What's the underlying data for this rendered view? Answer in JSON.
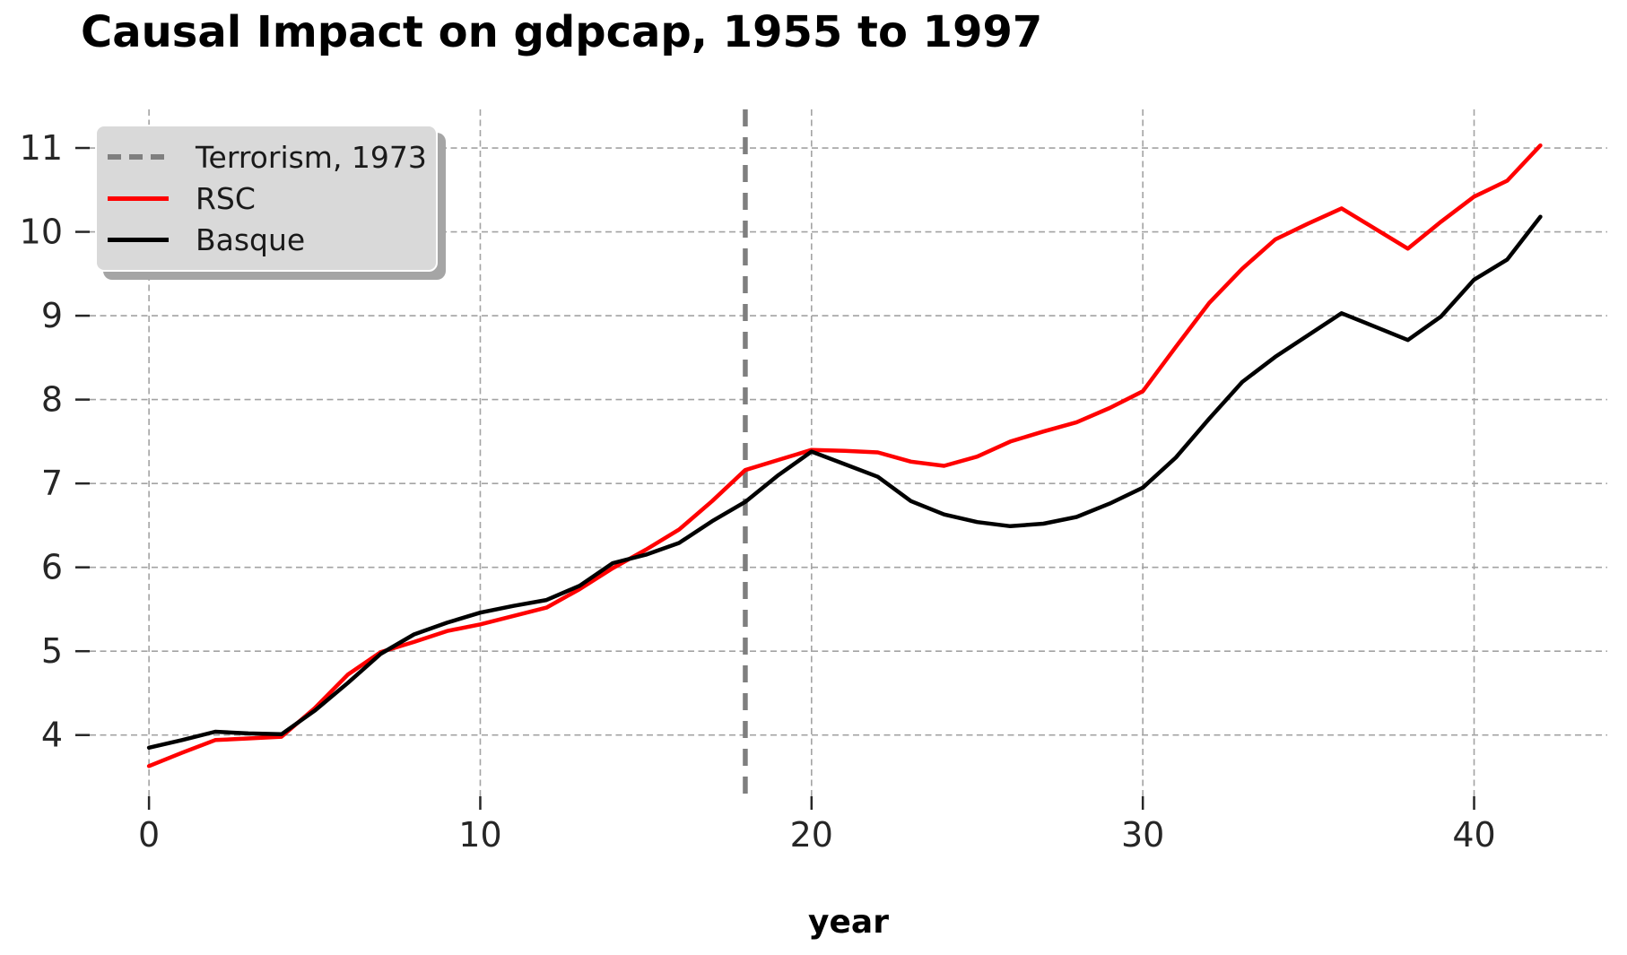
{
  "chart": {
    "title": "Causal Impact on gdpcap, 1955 to 1997",
    "xlabel": "year"
  },
  "chart_data": {
    "type": "line",
    "title": "Causal Impact on gdpcap, 1955 to 1997",
    "xlabel": "year",
    "ylabel": "",
    "x": [
      0,
      1,
      2,
      3,
      4,
      5,
      6,
      7,
      8,
      9,
      10,
      11,
      12,
      13,
      14,
      15,
      16,
      17,
      18,
      19,
      20,
      21,
      22,
      23,
      24,
      25,
      26,
      27,
      28,
      29,
      30,
      31,
      32,
      33,
      34,
      35,
      36,
      37,
      38,
      39,
      40,
      41,
      42
    ],
    "series": [
      {
        "name": "RSC",
        "color": "#ff0000",
        "values": [
          3.63,
          3.79,
          3.94,
          3.96,
          3.98,
          4.32,
          4.72,
          4.99,
          5.11,
          5.24,
          5.32,
          5.42,
          5.52,
          5.74,
          5.99,
          6.21,
          6.45,
          6.79,
          7.16,
          7.28,
          7.4,
          7.39,
          7.37,
          7.26,
          7.21,
          7.32,
          7.5,
          7.62,
          7.73,
          7.9,
          8.1,
          8.63,
          9.15,
          9.56,
          9.91,
          10.1,
          10.28,
          10.04,
          9.8,
          10.12,
          10.42,
          10.61,
          11.03
        ]
      },
      {
        "name": "Basque",
        "color": "#000000",
        "values": [
          3.85,
          3.94,
          4.04,
          4.02,
          4.01,
          4.29,
          4.62,
          4.97,
          5.2,
          5.34,
          5.46,
          5.54,
          5.61,
          5.78,
          6.05,
          6.15,
          6.29,
          6.55,
          6.78,
          7.1,
          7.38,
          7.23,
          7.08,
          6.79,
          6.63,
          6.54,
          6.49,
          6.52,
          6.6,
          6.76,
          6.95,
          7.31,
          7.77,
          8.21,
          8.51,
          8.77,
          9.03,
          8.87,
          8.71,
          8.99,
          9.43,
          9.67,
          10.18
        ]
      }
    ],
    "event_line": {
      "label": "Terrorism, 1973",
      "x": 18,
      "color": "#7f7f7f",
      "style": "dashed"
    },
    "legend": [
      {
        "label": "Terrorism, 1973",
        "color": "#7f7f7f",
        "style": "dashed"
      },
      {
        "label": "RSC",
        "color": "#ff0000",
        "style": "solid"
      },
      {
        "label": "Basque",
        "color": "#000000",
        "style": "solid"
      }
    ],
    "xticks": [
      0,
      10,
      20,
      30,
      40
    ],
    "yticks": [
      4,
      5,
      6,
      7,
      8,
      9,
      10,
      11
    ],
    "xlim": [
      -1.79,
      44.02
    ],
    "ylim": [
      3.27,
      11.46
    ],
    "grid": true,
    "grid_color": "#a3a3a3",
    "tick_color": "#262626",
    "legend_position": "upper-left",
    "background": "#ffffff"
  }
}
